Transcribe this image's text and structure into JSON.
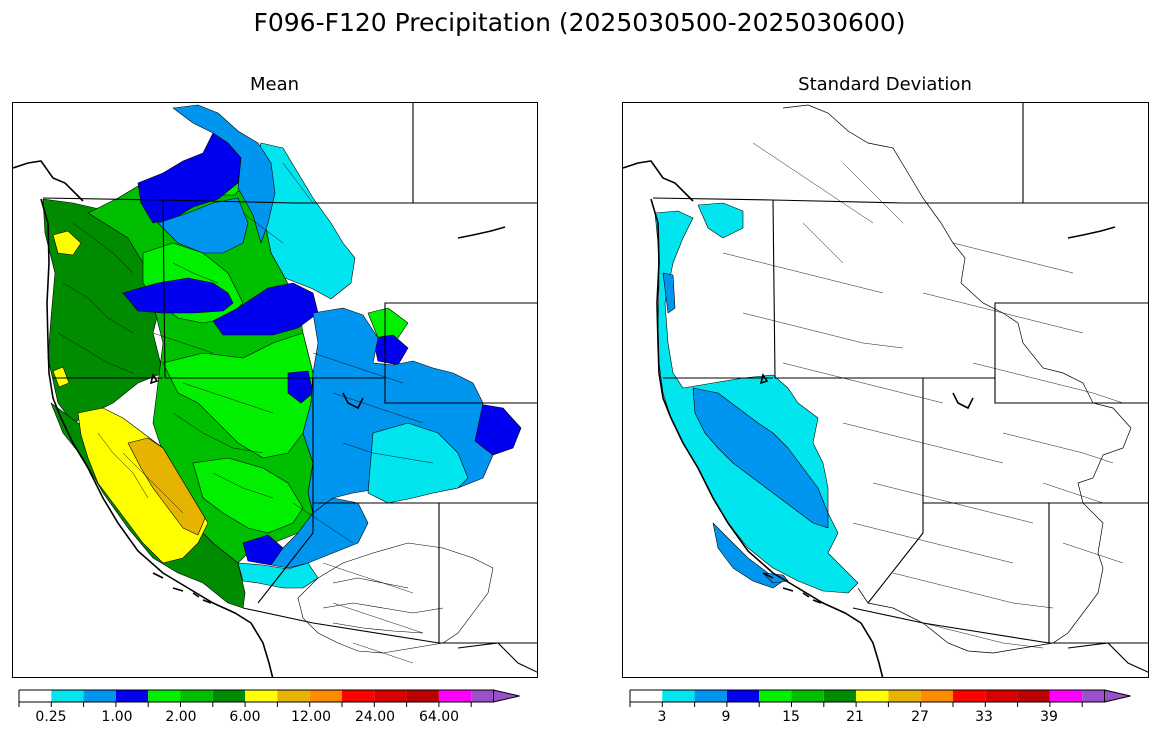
{
  "title": "F096-F120 Precipitation (2025030500-2025030600)",
  "panels": [
    {
      "id": "mean",
      "title": "Mean",
      "colorbar": {
        "colors": [
          "#ffffff",
          "#00e5ee",
          "#0096f0",
          "#0000f0",
          "#00f000",
          "#00be00",
          "#008c00",
          "#ffff00",
          "#e6b400",
          "#ff8c00",
          "#ff0000",
          "#d70000",
          "#be0000",
          "#ff00ff",
          "#9a50c8"
        ],
        "tick_labels": [
          "0.25",
          "1.00",
          "2.00",
          "6.00",
          "12.00",
          "24.00",
          "64.00"
        ]
      }
    },
    {
      "id": "stddev",
      "title": "Standard Deviation",
      "colorbar": {
        "colors": [
          "#ffffff",
          "#00e5ee",
          "#0096f0",
          "#0000f0",
          "#00f000",
          "#00be00",
          "#008c00",
          "#ffff00",
          "#e6b400",
          "#ff8c00",
          "#ff0000",
          "#d70000",
          "#be0000",
          "#ff00ff",
          "#9a50c8"
        ],
        "tick_labels": [
          "3",
          "9",
          "15",
          "21",
          "27",
          "33",
          "39"
        ]
      }
    }
  ]
}
